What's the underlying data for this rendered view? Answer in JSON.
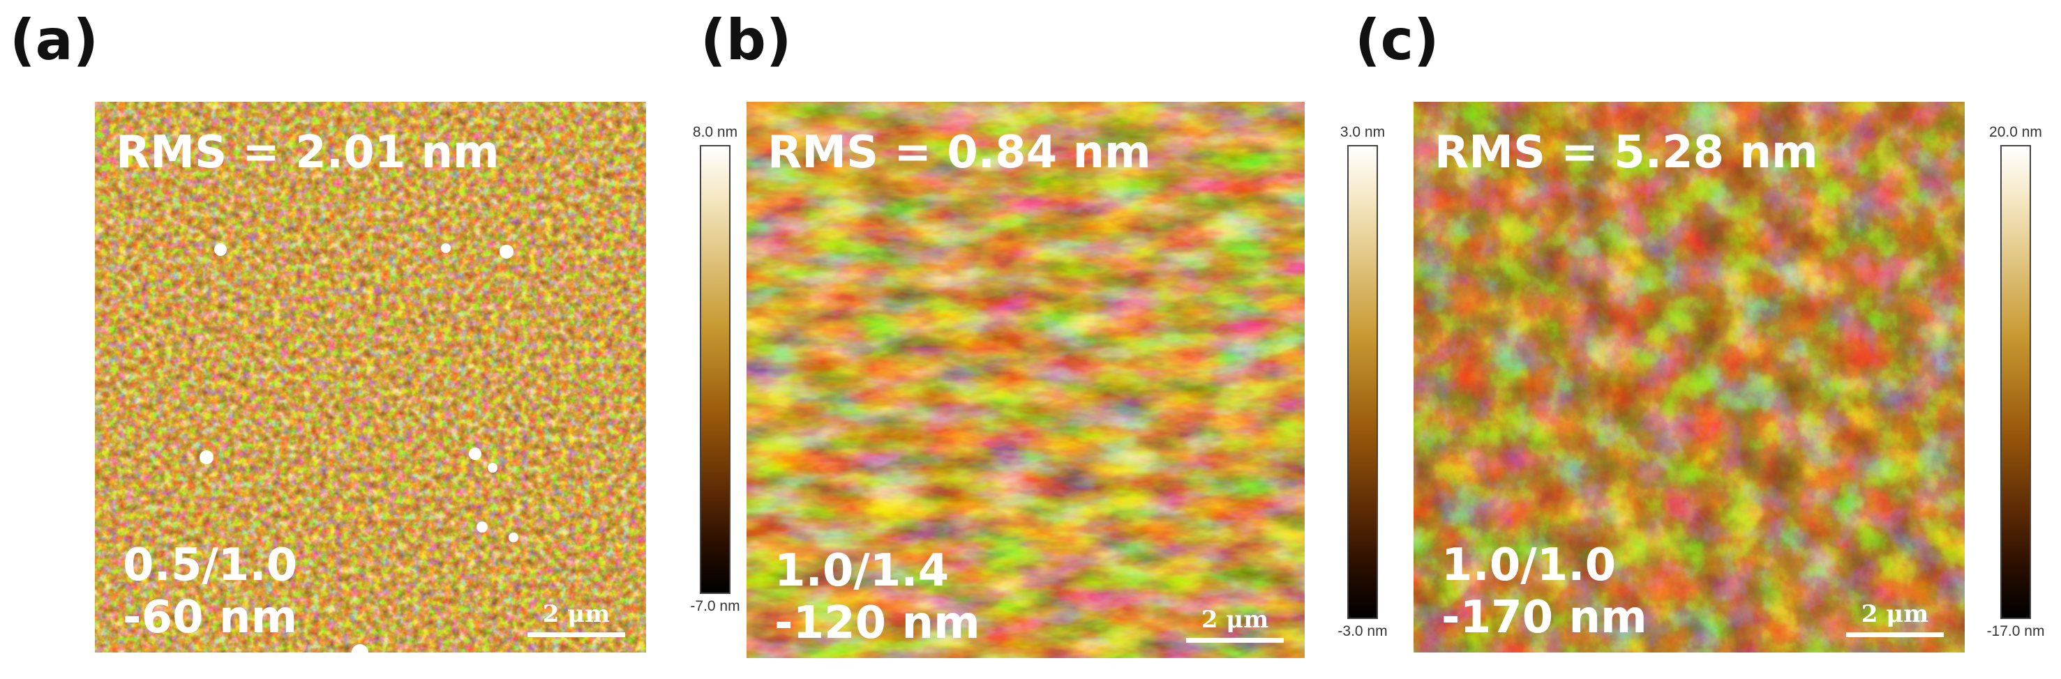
{
  "panels": [
    {
      "label": "(a)",
      "rms": "RMS = 2.01 nm",
      "ratio": "0.5/1.0",
      "depth": "-60 nm",
      "scale_bar": "2 μm",
      "colorbar_max": "8.0 nm",
      "colorbar_min": "-7.0 nm"
    },
    {
      "label": "(b)",
      "rms": "RMS = 0.84 nm",
      "ratio": "1.0/1.4",
      "depth": "-120 nm",
      "scale_bar": "2 μm",
      "colorbar_max": "3.0 nm",
      "colorbar_min": "-3.0 nm"
    },
    {
      "label": "(c)",
      "rms": "RMS = 5.28 nm",
      "ratio": "1.0/1.0",
      "depth": "-170 nm",
      "scale_bar": "2 μm",
      "colorbar_max": "20.0 nm",
      "colorbar_min": "-17.0 nm"
    }
  ],
  "colors": {
    "afm_dark": "#2a1000",
    "afm_mid": "#8a4a08",
    "afm_bright": "#f6e2a6"
  }
}
